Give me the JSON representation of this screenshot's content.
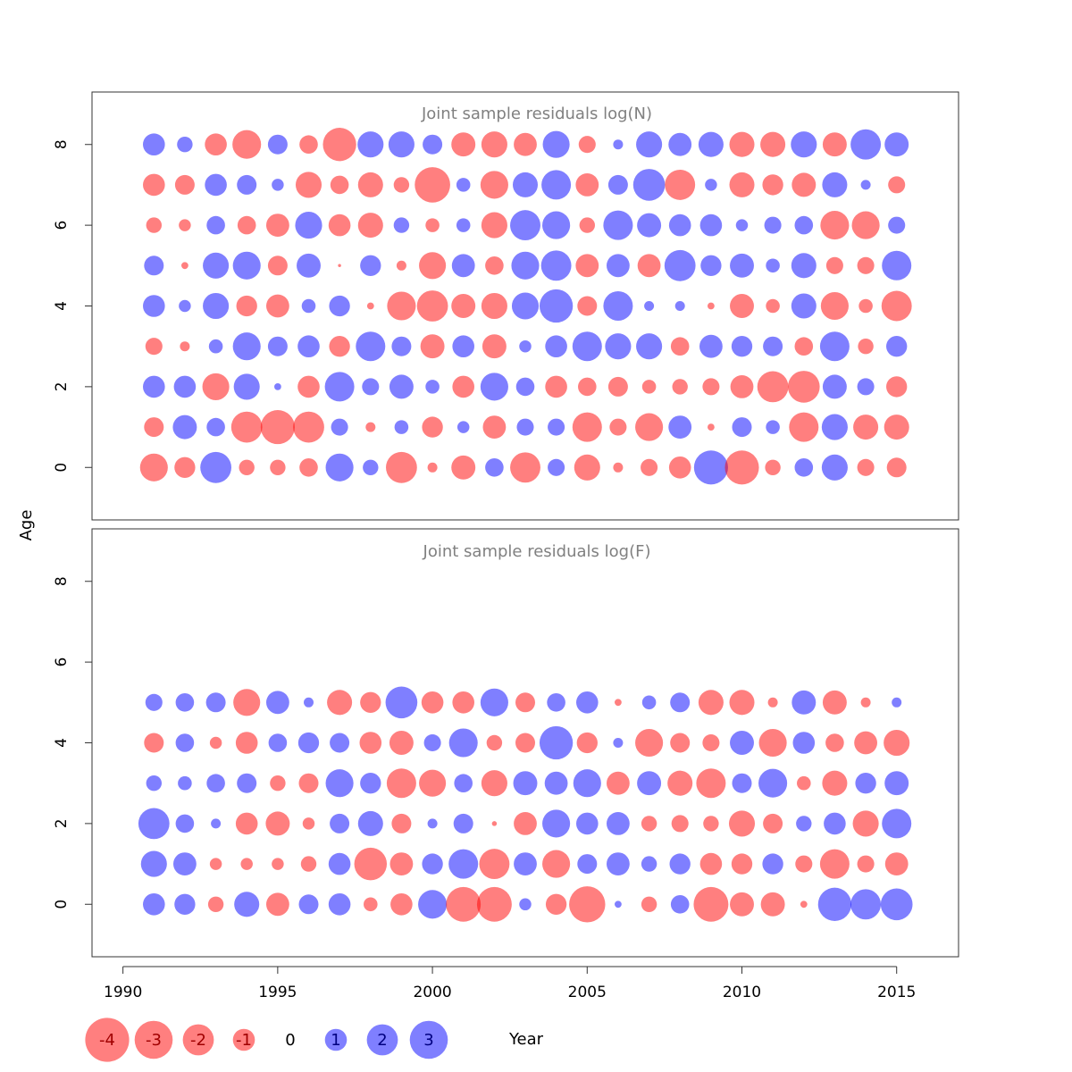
{
  "chart_data": {
    "type": "bubble",
    "xlabel": "Year",
    "ylabel": "Age",
    "xlim": [
      1989,
      2017
    ],
    "ylim": [
      -1.3,
      9.3
    ],
    "x_ticks": [
      1990,
      1995,
      2000,
      2005,
      2010,
      2015
    ],
    "y_ticks": [
      0,
      2,
      4,
      6,
      8
    ],
    "years": [
      1991,
      1992,
      1993,
      1994,
      1995,
      1996,
      1997,
      1998,
      1999,
      2000,
      2001,
      2002,
      2003,
      2004,
      2005,
      2006,
      2007,
      2008,
      2009,
      2010,
      2011,
      2012,
      2013,
      2014,
      2015
    ],
    "colors": {
      "negative": "#ff0000",
      "positive": "#0000ff",
      "opacity": 0.5
    },
    "panels": [
      {
        "title": "Joint sample residuals log(N)",
        "ages": [
          0,
          1,
          2,
          3,
          4,
          5,
          6,
          7,
          8
        ],
        "residuals": [
          [
            -1.6,
            -0.9,
            2.0,
            -0.5,
            -0.5,
            -0.7,
            1.6,
            0.5,
            -2.0,
            -0.2,
            -1.2,
            0.7,
            -1.9,
            0.6,
            -1.4,
            -0.2,
            -0.6,
            -1.0,
            2.4,
            -2.4,
            -0.5,
            0.7,
            1.4,
            -0.6,
            -0.8
          ],
          [
            -0.8,
            1.2,
            0.7,
            -2.0,
            -2.4,
            -2.0,
            0.6,
            -0.2,
            0.4,
            -0.9,
            0.3,
            -1.1,
            0.6,
            0.6,
            -1.8,
            -0.6,
            -1.6,
            1.1,
            -0.1,
            0.8,
            0.4,
            -1.8,
            1.4,
            -1.3,
            -1.3
          ],
          [
            1.0,
            1.0,
            -1.5,
            1.4,
            0.1,
            -1.0,
            1.8,
            0.6,
            1.2,
            0.4,
            -1.0,
            1.6,
            0.7,
            -1.0,
            -0.7,
            -0.8,
            -0.4,
            -0.5,
            -0.6,
            -1.1,
            -2.0,
            -2.1,
            1.2,
            0.6,
            -0.9
          ],
          [
            -0.6,
            -0.2,
            0.4,
            1.6,
            0.8,
            1.0,
            -0.9,
            1.8,
            0.8,
            -1.2,
            1.0,
            -1.2,
            0.3,
            1.0,
            1.8,
            1.4,
            1.4,
            -0.7,
            1.1,
            0.9,
            0.8,
            -0.7,
            1.8,
            -0.5,
            0.9
          ],
          [
            1.0,
            0.3,
            1.4,
            -0.9,
            -1.1,
            0.4,
            0.9,
            -0.1,
            -1.7,
            -2.0,
            -1.2,
            -1.4,
            1.5,
            2.3,
            -0.8,
            1.8,
            0.2,
            0.2,
            -0.1,
            -1.2,
            -0.4,
            1.3,
            -1.6,
            -0.4,
            -1.9
          ],
          [
            0.8,
            -0.1,
            1.4,
            1.6,
            -0.8,
            1.2,
            -0.02,
            0.9,
            -0.2,
            -1.5,
            1.1,
            -0.7,
            1.6,
            1.9,
            -1.1,
            1.1,
            -1.1,
            2.0,
            0.9,
            1.2,
            0.4,
            1.3,
            -0.6,
            -0.6,
            1.8
          ],
          [
            -0.5,
            -0.3,
            0.7,
            -0.7,
            -1.1,
            1.5,
            -1.0,
            -1.3,
            0.5,
            -0.4,
            0.4,
            -1.4,
            1.9,
            1.6,
            -0.5,
            1.8,
            1.2,
            1.0,
            1.0,
            0.3,
            0.6,
            0.7,
            -1.7,
            -1.6,
            0.6
          ],
          [
            -1.0,
            -0.8,
            1.0,
            0.8,
            0.3,
            -1.4,
            -0.7,
            -1.3,
            -0.5,
            -2.6,
            0.4,
            -1.6,
            1.3,
            1.8,
            -1.1,
            0.8,
            2.1,
            -1.9,
            0.3,
            -1.3,
            -0.9,
            -1.2,
            1.3,
            0.2,
            -0.6
          ],
          [
            1.0,
            0.5,
            -1.0,
            -1.7,
            0.8,
            -0.7,
            -2.3,
            1.4,
            1.4,
            0.8,
            -1.2,
            -1.4,
            -1.1,
            1.5,
            -0.6,
            0.2,
            1.4,
            1.1,
            1.3,
            -1.3,
            -1.3,
            1.4,
            -1.2,
            1.9,
            1.2
          ]
        ]
      },
      {
        "title": "Joint sample residuals log(F)",
        "ages": [
          0,
          1,
          2,
          3,
          4,
          5
        ],
        "residuals": [
          [
            1.0,
            0.9,
            -0.5,
            1.3,
            -1.1,
            0.8,
            1.0,
            -0.4,
            -1.0,
            1.7,
            -2.5,
            -2.5,
            0.3,
            -0.9,
            -2.7,
            0.1,
            -0.5,
            0.7,
            -2.5,
            -1.2,
            -1.2,
            -0.1,
            2.3,
            1.9,
            2.1
          ],
          [
            1.4,
            1.1,
            -0.3,
            -0.3,
            -0.3,
            -0.5,
            1.0,
            -2.2,
            -1.1,
            0.9,
            1.8,
            -1.9,
            1.1,
            -1.6,
            0.8,
            1.1,
            0.5,
            0.9,
            -1.0,
            -0.9,
            0.9,
            -0.6,
            -1.8,
            -0.6,
            -1.1
          ],
          [
            2.0,
            0.7,
            0.2,
            -1.0,
            -1.2,
            -0.3,
            0.8,
            1.3,
            -0.8,
            0.2,
            0.8,
            -0.05,
            -1.1,
            1.6,
            1.0,
            1.1,
            -0.5,
            -0.6,
            -0.5,
            -1.4,
            -0.8,
            0.5,
            1.0,
            -1.4,
            1.8
          ],
          [
            0.5,
            0.4,
            0.7,
            0.8,
            -0.5,
            -0.8,
            1.6,
            0.9,
            -1.8,
            -1.5,
            0.7,
            -1.4,
            1.2,
            1.1,
            1.6,
            -1.1,
            1.2,
            -1.3,
            -1.8,
            0.8,
            1.7,
            -0.4,
            -1.3,
            0.9,
            1.2
          ],
          [
            -0.8,
            0.7,
            -0.3,
            -1.0,
            0.7,
            0.9,
            0.8,
            -1.0,
            -1.2,
            0.6,
            1.7,
            -0.5,
            -0.8,
            2.3,
            -0.9,
            0.2,
            -1.6,
            -0.8,
            -0.6,
            1.2,
            -1.6,
            1.0,
            -0.7,
            -1.1,
            -1.4
          ],
          [
            0.6,
            0.7,
            0.8,
            -1.5,
            1.1,
            0.2,
            -1.3,
            -0.9,
            2.1,
            -1.0,
            -1.0,
            1.6,
            -0.8,
            0.7,
            1.0,
            -0.1,
            0.4,
            0.8,
            -1.3,
            -1.3,
            -0.2,
            1.2,
            -1.2,
            -0.2,
            0.2
          ]
        ]
      }
    ],
    "legend": [
      {
        "value": -4,
        "label": "-4"
      },
      {
        "value": -3,
        "label": "-3"
      },
      {
        "value": -2,
        "label": "-2"
      },
      {
        "value": -1,
        "label": "-1"
      },
      {
        "value": 0,
        "label": "0"
      },
      {
        "value": 1,
        "label": "1"
      },
      {
        "value": 2,
        "label": "2"
      },
      {
        "value": 3,
        "label": "3"
      }
    ]
  }
}
